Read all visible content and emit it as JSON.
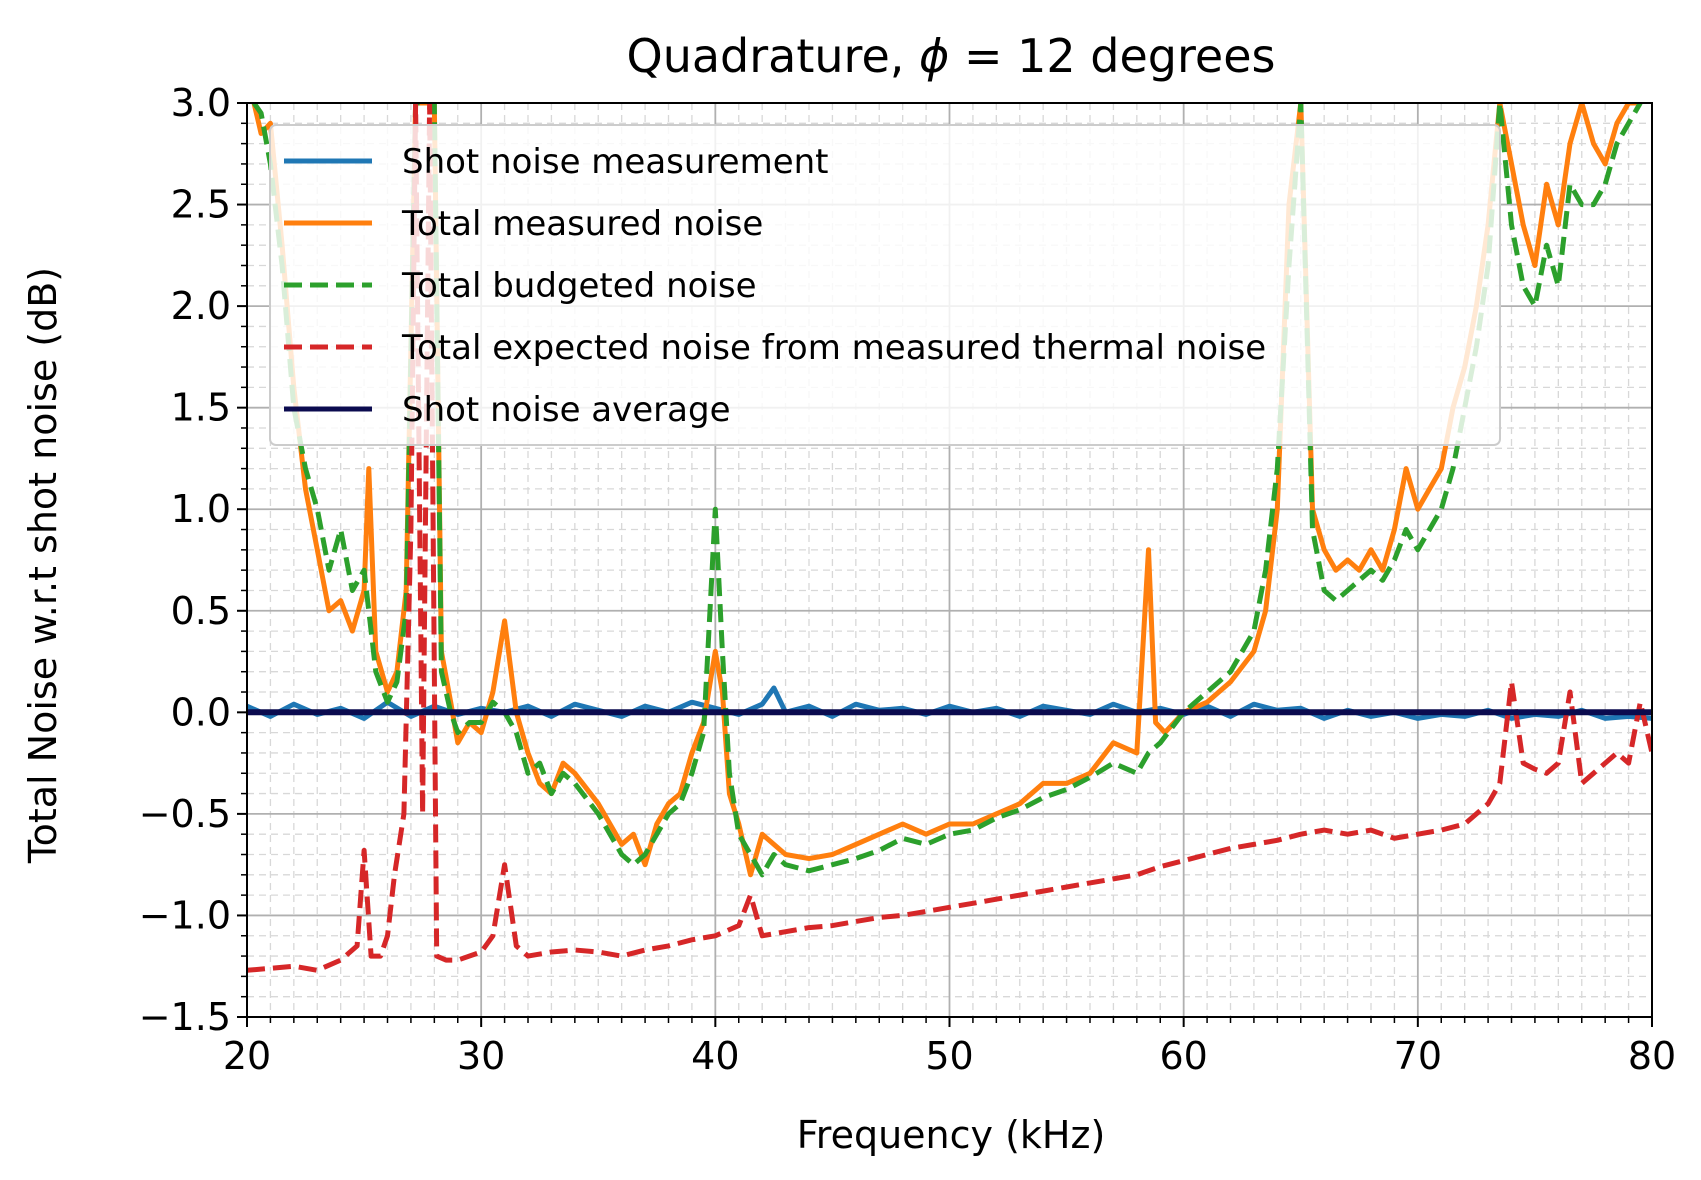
{
  "chart_data": {
    "type": "line",
    "title_prefix": "Quadrature, ",
    "title_symbol": "ϕ",
    "title_suffix": " = 12 degrees",
    "xlabel": "Frequency (kHz)",
    "ylabel": "Total Noise w.r.t shot noise (dB)",
    "xlim": [
      20,
      80
    ],
    "ylim": [
      -1.5,
      3.0
    ],
    "xticks": [
      20,
      30,
      40,
      50,
      60,
      70,
      80
    ],
    "yticks": [
      -1.5,
      -1.0,
      -0.5,
      0.0,
      0.5,
      1.0,
      1.5,
      2.0,
      2.5,
      3.0
    ],
    "ytick_labels": [
      "−1.5",
      "−1.0",
      "−0.5",
      "0.0",
      "0.5",
      "1.0",
      "1.5",
      "2.0",
      "2.5",
      "3.0"
    ],
    "grid": "major and minor",
    "legend_position": "upper-left",
    "series": [
      {
        "name": "Shot noise measurement",
        "color": "#1f77b4",
        "dash": "solid",
        "x": [
          20,
          21,
          22,
          23,
          24,
          25,
          26,
          27,
          28,
          29,
          30,
          31,
          32,
          33,
          34,
          35,
          36,
          37,
          38,
          39,
          40,
          41,
          42,
          42.5,
          43,
          44,
          45,
          46,
          47,
          48,
          49,
          50,
          51,
          52,
          53,
          54,
          55,
          56,
          57,
          58,
          59,
          60,
          61,
          62,
          63,
          64,
          65,
          66,
          67,
          68,
          69,
          70,
          71,
          72,
          73,
          74,
          75,
          76,
          77,
          78,
          79,
          80
        ],
        "y": [
          0.03,
          -0.02,
          0.04,
          -0.01,
          0.02,
          -0.03,
          0.05,
          -0.02,
          0.03,
          -0.01,
          0.02,
          0.0,
          0.03,
          -0.02,
          0.04,
          0.01,
          -0.02,
          0.03,
          0.0,
          0.05,
          0.02,
          -0.01,
          0.04,
          0.12,
          0.0,
          0.03,
          -0.02,
          0.04,
          0.01,
          0.02,
          -0.01,
          0.03,
          0.0,
          0.02,
          -0.02,
          0.03,
          0.01,
          -0.01,
          0.04,
          0.0,
          0.02,
          -0.01,
          0.03,
          -0.02,
          0.04,
          0.01,
          0.02,
          -0.03,
          0.01,
          -0.02,
          0.0,
          -0.03,
          -0.01,
          -0.02,
          0.01,
          -0.03,
          -0.01,
          -0.02,
          0.01,
          -0.03,
          -0.02,
          -0.03
        ]
      },
      {
        "name": "Total measured noise",
        "color": "#ff7f0e",
        "dash": "solid",
        "x": [
          20.3,
          20.6,
          21,
          21.5,
          22,
          22.5,
          23,
          23.5,
          24,
          24.5,
          25,
          25.2,
          25.5,
          26,
          26.4,
          26.8,
          27.2,
          27.6,
          28,
          28.3,
          28.7,
          29,
          29.5,
          30,
          30.5,
          31,
          31.5,
          32,
          32.5,
          33,
          33.5,
          34,
          35,
          36,
          36.5,
          37,
          37.5,
          38,
          38.5,
          39,
          39.5,
          40,
          40.3,
          40.6,
          41,
          41.5,
          42,
          42.5,
          43,
          44,
          45,
          46,
          47,
          48,
          49,
          50,
          51,
          52,
          53,
          54,
          55,
          56,
          57,
          58,
          58.5,
          58.8,
          59.2,
          60,
          61,
          62,
          63,
          63.5,
          64,
          64.5,
          65,
          65.5,
          66,
          66.5,
          67,
          67.5,
          68,
          68.5,
          69,
          69.5,
          70,
          70.5,
          71,
          71.5,
          72,
          72.5,
          73,
          73.5,
          74,
          74.5,
          75,
          75.5,
          76,
          76.5,
          77,
          77.5,
          78,
          78.5,
          79,
          79.5
        ],
        "y": [
          3.0,
          2.85,
          2.9,
          2.3,
          1.6,
          1.1,
          0.8,
          0.5,
          0.55,
          0.4,
          0.6,
          1.2,
          0.3,
          0.1,
          0.2,
          0.6,
          3.0,
          3.0,
          3.0,
          0.3,
          0.05,
          -0.15,
          -0.05,
          -0.1,
          0.1,
          0.45,
          0.0,
          -0.2,
          -0.35,
          -0.4,
          -0.25,
          -0.3,
          -0.45,
          -0.65,
          -0.6,
          -0.75,
          -0.55,
          -0.45,
          -0.4,
          -0.2,
          -0.05,
          0.3,
          0.1,
          -0.4,
          -0.55,
          -0.8,
          -0.6,
          -0.65,
          -0.7,
          -0.72,
          -0.7,
          -0.65,
          -0.6,
          -0.55,
          -0.6,
          -0.55,
          -0.55,
          -0.5,
          -0.45,
          -0.35,
          -0.35,
          -0.3,
          -0.15,
          -0.2,
          0.8,
          -0.05,
          -0.1,
          0.0,
          0.05,
          0.15,
          0.3,
          0.5,
          1.0,
          2.5,
          3.0,
          1.0,
          0.8,
          0.7,
          0.75,
          0.7,
          0.8,
          0.7,
          0.9,
          1.2,
          1.0,
          1.1,
          1.2,
          1.5,
          1.7,
          2.0,
          2.4,
          3.0,
          2.7,
          2.4,
          2.2,
          2.6,
          2.4,
          2.8,
          3.0,
          2.8,
          2.7,
          2.9,
          3.0,
          3.0
        ]
      },
      {
        "name": "Total budgeted noise",
        "color": "#2ca02c",
        "dash": "dashed",
        "x": [
          20.3,
          20.6,
          21,
          21.5,
          22,
          22.5,
          23,
          23.5,
          24,
          24.5,
          25,
          25.5,
          26,
          26.4,
          26.8,
          27.2,
          27.6,
          28,
          28.3,
          28.7,
          29,
          29.5,
          30,
          30.5,
          31,
          31.5,
          32,
          32.5,
          33,
          33.5,
          34,
          35,
          36,
          36.5,
          37,
          37.5,
          38,
          38.5,
          39,
          39.5,
          40,
          40.3,
          40.6,
          41,
          41.5,
          42,
          42.5,
          43,
          44,
          45,
          46,
          47,
          48,
          49,
          50,
          51,
          52,
          53,
          54,
          55,
          56,
          57,
          58,
          58.5,
          59,
          60,
          61,
          62,
          63,
          63.5,
          64,
          64.5,
          65,
          65.5,
          66,
          66.5,
          67,
          67.5,
          68,
          68.5,
          69,
          69.5,
          70,
          70.5,
          71,
          71.5,
          72,
          72.5,
          73,
          73.5,
          74,
          74.5,
          75,
          75.5,
          76,
          76.5,
          77,
          77.5,
          78,
          78.5,
          79,
          79.5
        ],
        "y": [
          3.0,
          2.95,
          2.7,
          2.2,
          1.5,
          1.2,
          1.0,
          0.7,
          0.9,
          0.6,
          0.7,
          0.2,
          0.05,
          0.15,
          0.5,
          3.0,
          3.0,
          3.0,
          0.2,
          0.0,
          -0.1,
          -0.05,
          -0.05,
          0.05,
          0.0,
          -0.1,
          -0.3,
          -0.25,
          -0.4,
          -0.3,
          -0.35,
          -0.5,
          -0.7,
          -0.75,
          -0.7,
          -0.6,
          -0.5,
          -0.45,
          -0.3,
          -0.1,
          1.0,
          0.3,
          -0.3,
          -0.6,
          -0.7,
          -0.8,
          -0.7,
          -0.75,
          -0.78,
          -0.75,
          -0.72,
          -0.68,
          -0.62,
          -0.65,
          -0.6,
          -0.58,
          -0.52,
          -0.48,
          -0.42,
          -0.38,
          -0.32,
          -0.25,
          -0.3,
          -0.2,
          -0.15,
          0.0,
          0.1,
          0.2,
          0.4,
          0.7,
          1.2,
          2.2,
          3.0,
          0.9,
          0.6,
          0.55,
          0.6,
          0.65,
          0.7,
          0.65,
          0.75,
          0.9,
          0.8,
          0.9,
          1.0,
          1.2,
          1.5,
          1.8,
          2.2,
          3.0,
          2.4,
          2.1,
          2.0,
          2.3,
          2.1,
          2.6,
          2.5,
          2.5,
          2.6,
          2.8,
          2.9,
          3.0
        ]
      },
      {
        "name": "Total expected noise from measured thermal noise",
        "color": "#d62728",
        "dash": "dashed",
        "x": [
          20,
          21,
          22,
          23,
          24,
          24.7,
          25,
          25.3,
          25.7,
          26,
          26.3,
          26.7,
          27,
          27.2,
          27.5,
          27.8,
          28.1,
          28.5,
          29,
          30,
          30.5,
          31,
          31.5,
          32,
          33,
          34,
          35,
          36,
          37,
          38,
          39,
          40,
          41,
          41.5,
          42,
          43,
          44,
          45,
          46,
          47,
          48,
          49,
          50,
          51,
          52,
          53,
          54,
          55,
          56,
          57,
          58,
          59,
          60,
          61,
          62,
          63,
          64,
          65,
          66,
          67,
          68,
          69,
          70,
          71,
          72,
          73,
          73.5,
          74,
          74.5,
          75,
          75.5,
          76,
          76.5,
          77,
          77.5,
          78,
          78.5,
          79,
          79.5,
          80
        ],
        "y": [
          -1.27,
          -1.26,
          -1.25,
          -1.27,
          -1.22,
          -1.15,
          -0.68,
          -1.2,
          -1.2,
          -1.1,
          -0.8,
          -0.5,
          0.9,
          3.0,
          -0.5,
          3.0,
          -1.2,
          -1.22,
          -1.22,
          -1.18,
          -1.1,
          -0.75,
          -1.15,
          -1.2,
          -1.18,
          -1.17,
          -1.18,
          -1.2,
          -1.17,
          -1.15,
          -1.12,
          -1.1,
          -1.05,
          -0.9,
          -1.1,
          -1.08,
          -1.06,
          -1.05,
          -1.03,
          -1.01,
          -1.0,
          -0.98,
          -0.96,
          -0.94,
          -0.92,
          -0.9,
          -0.88,
          -0.86,
          -0.84,
          -0.82,
          -0.8,
          -0.76,
          -0.73,
          -0.7,
          -0.67,
          -0.65,
          -0.63,
          -0.6,
          -0.58,
          -0.6,
          -0.58,
          -0.62,
          -0.6,
          -0.58,
          -0.55,
          -0.45,
          -0.35,
          0.15,
          -0.25,
          -0.28,
          -0.3,
          -0.25,
          0.1,
          -0.35,
          -0.3,
          -0.25,
          -0.2,
          -0.25,
          0.05,
          -0.2
        ]
      },
      {
        "name": "Shot noise average",
        "color": "#0b0b4f",
        "dash": "solid",
        "x": [
          20,
          80
        ],
        "y": [
          0.0,
          0.0
        ]
      }
    ]
  }
}
